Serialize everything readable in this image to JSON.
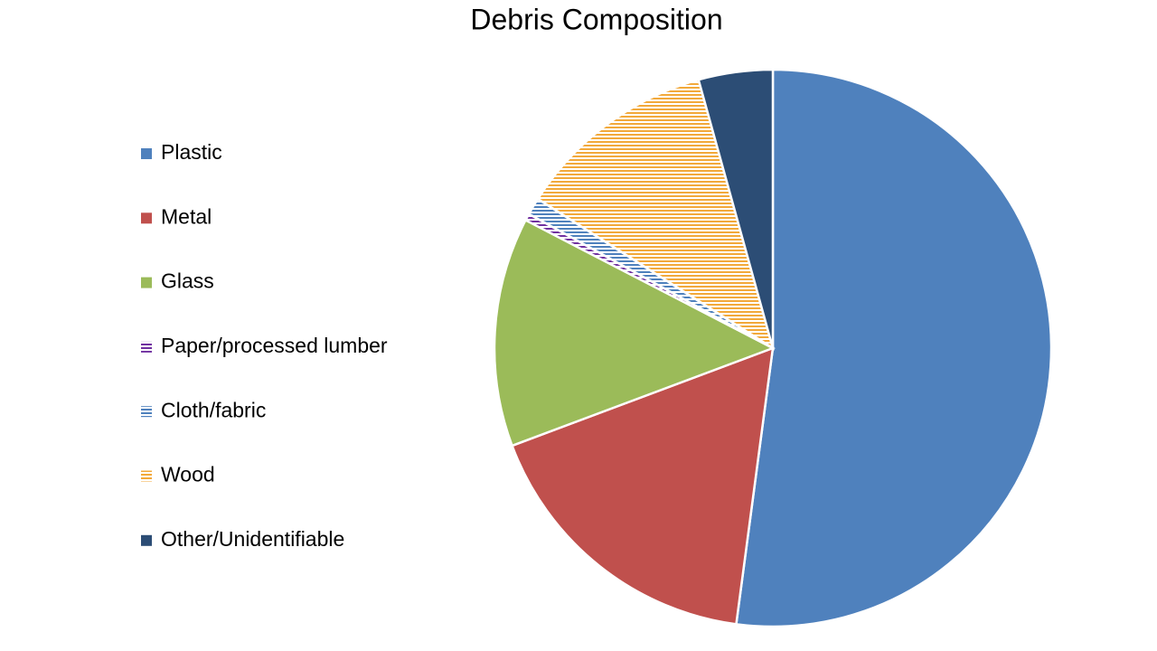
{
  "chart_data": {
    "type": "pie",
    "title": "Debris Composition",
    "categories": [
      "Plastic",
      "Metal",
      "Glass",
      "Paper/processed lumber",
      "Cloth/fabric",
      "Wood",
      "Other/Unidentifiable"
    ],
    "values": [
      52.1,
      17.2,
      13.3,
      0.4,
      1.0,
      11.7,
      4.3
    ],
    "colors": [
      "#4f81bd",
      "#c0504d",
      "#9bbb59",
      "#7030a0",
      "#4f81bd",
      "#f2a93b",
      "#2c4d75"
    ],
    "patterns": [
      "solid",
      "solid",
      "solid",
      "hlines",
      "hlines",
      "hlines",
      "solid"
    ],
    "legend": "left"
  }
}
